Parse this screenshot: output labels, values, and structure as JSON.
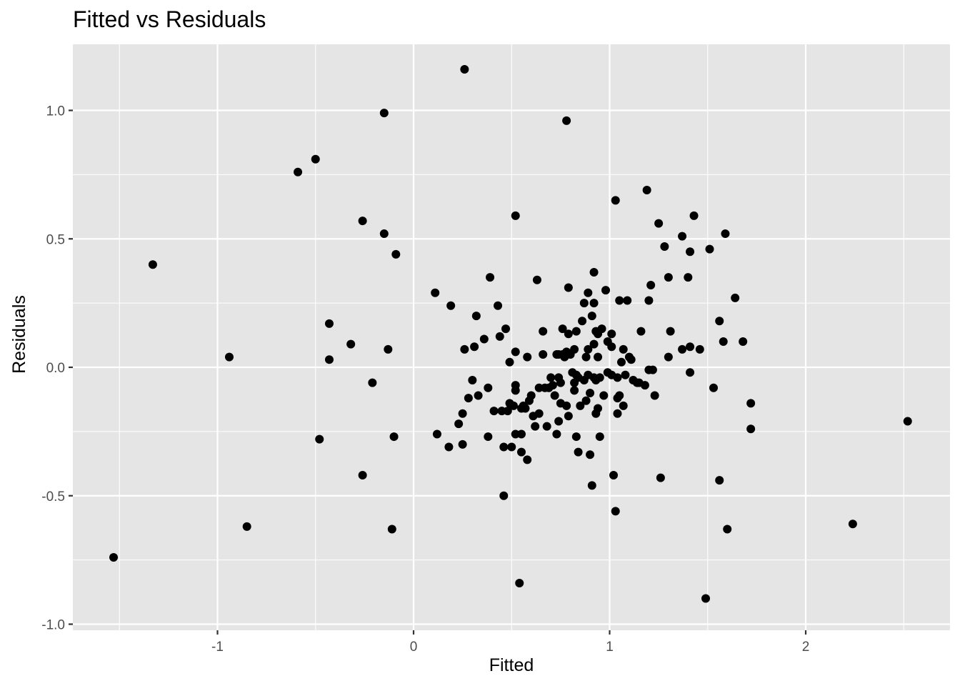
{
  "chart_data": {
    "type": "scatter",
    "title": "Fitted vs Residuals",
    "xlabel": "Fitted",
    "ylabel": "Residuals",
    "xlim": [
      -1.73,
      2.76
    ],
    "ylim": [
      -1.0,
      1.22
    ],
    "x_ticks": [
      {
        "value": -1,
        "label": "-1"
      },
      {
        "value": 0,
        "label": "0"
      },
      {
        "value": 1,
        "label": "1"
      },
      {
        "value": 2,
        "label": "2"
      }
    ],
    "y_ticks": [
      {
        "value": -1.0,
        "label": "-1.0"
      },
      {
        "value": -0.5,
        "label": "-0.5"
      },
      {
        "value": 0.0,
        "label": "0.0"
      },
      {
        "value": 0.5,
        "label": "0.5"
      },
      {
        "value": 1.0,
        "label": "1.0"
      }
    ],
    "grid": true,
    "panel_color": "#e5e5e5",
    "point_color": "#000000",
    "points": [
      [
        -1.53,
        -0.74
      ],
      [
        -1.33,
        0.4
      ],
      [
        -0.94,
        0.04
      ],
      [
        -0.85,
        -0.62
      ],
      [
        -0.59,
        0.76
      ],
      [
        -0.5,
        0.81
      ],
      [
        -0.48,
        -0.28
      ],
      [
        -0.43,
        0.03
      ],
      [
        -0.43,
        0.17
      ],
      [
        -0.32,
        0.09
      ],
      [
        -0.26,
        0.57
      ],
      [
        -0.26,
        -0.42
      ],
      [
        -0.21,
        -0.06
      ],
      [
        -0.15,
        0.99
      ],
      [
        -0.15,
        0.52
      ],
      [
        -0.13,
        0.07
      ],
      [
        -0.11,
        -0.63
      ],
      [
        -0.1,
        -0.27
      ],
      [
        -0.09,
        0.44
      ],
      [
        0.11,
        0.29
      ],
      [
        0.12,
        -0.26
      ],
      [
        0.18,
        -0.31
      ],
      [
        0.19,
        0.24
      ],
      [
        0.23,
        -0.22
      ],
      [
        0.25,
        -0.3
      ],
      [
        0.25,
        -0.18
      ],
      [
        0.26,
        1.16
      ],
      [
        0.26,
        0.07
      ],
      [
        0.28,
        -0.12
      ],
      [
        0.3,
        -0.05
      ],
      [
        0.31,
        0.08
      ],
      [
        0.32,
        0.2
      ],
      [
        0.33,
        -0.11
      ],
      [
        0.36,
        0.11
      ],
      [
        0.38,
        -0.27
      ],
      [
        0.38,
        -0.08
      ],
      [
        0.39,
        0.35
      ],
      [
        0.41,
        -0.17
      ],
      [
        0.43,
        0.24
      ],
      [
        0.44,
        0.12
      ],
      [
        0.45,
        -0.17
      ],
      [
        0.46,
        -0.5
      ],
      [
        0.46,
        -0.31
      ],
      [
        0.47,
        0.15
      ],
      [
        0.48,
        -0.17
      ],
      [
        0.49,
        -0.14
      ],
      [
        0.49,
        0.02
      ],
      [
        0.5,
        -0.31
      ],
      [
        0.51,
        -0.15
      ],
      [
        0.52,
        -0.26
      ],
      [
        0.52,
        -0.09
      ],
      [
        0.52,
        -0.07
      ],
      [
        0.52,
        0.06
      ],
      [
        0.52,
        0.59
      ],
      [
        0.54,
        -0.84
      ],
      [
        0.55,
        -0.16
      ],
      [
        0.55,
        -0.26
      ],
      [
        0.55,
        -0.33
      ],
      [
        0.56,
        -0.15
      ],
      [
        0.57,
        -0.16
      ],
      [
        0.58,
        0.04
      ],
      [
        0.58,
        -0.36
      ],
      [
        0.59,
        -0.13
      ],
      [
        0.6,
        -0.11
      ],
      [
        0.61,
        -0.19
      ],
      [
        0.62,
        -0.23
      ],
      [
        0.63,
        0.34
      ],
      [
        0.64,
        -0.08
      ],
      [
        0.64,
        -0.18
      ],
      [
        0.66,
        0.14
      ],
      [
        0.66,
        0.05
      ],
      [
        0.67,
        -0.08
      ],
      [
        0.68,
        -0.23
      ],
      [
        0.69,
        -0.08
      ],
      [
        0.7,
        -0.04
      ],
      [
        0.71,
        -0.07
      ],
      [
        0.72,
        -0.11
      ],
      [
        0.73,
        0.05
      ],
      [
        0.73,
        -0.26
      ],
      [
        0.74,
        -0.04
      ],
      [
        0.74,
        0.05
      ],
      [
        0.74,
        -0.21
      ],
      [
        0.75,
        -0.14
      ],
      [
        0.75,
        -0.06
      ],
      [
        0.76,
        0.15
      ],
      [
        0.76,
        0.05
      ],
      [
        0.77,
        0.04
      ],
      [
        0.78,
        0.06
      ],
      [
        0.78,
        -0.15
      ],
      [
        0.78,
        0.96
      ],
      [
        0.79,
        0.31
      ],
      [
        0.79,
        0.13
      ],
      [
        0.79,
        -0.19
      ],
      [
        0.8,
        0.05
      ],
      [
        0.81,
        -0.02
      ],
      [
        0.82,
        0.07
      ],
      [
        0.82,
        -0.09
      ],
      [
        0.82,
        -0.06
      ],
      [
        0.83,
        -0.03
      ],
      [
        0.83,
        0.14
      ],
      [
        0.83,
        -0.27
      ],
      [
        0.84,
        -0.33
      ],
      [
        0.84,
        -0.04
      ],
      [
        0.85,
        -0.15
      ],
      [
        0.86,
        0.18
      ],
      [
        0.87,
        0.25
      ],
      [
        0.87,
        -0.05
      ],
      [
        0.88,
        0.04
      ],
      [
        0.88,
        -0.13
      ],
      [
        0.89,
        0.07
      ],
      [
        0.89,
        -0.03
      ],
      [
        0.89,
        0.29
      ],
      [
        0.9,
        -0.1
      ],
      [
        0.9,
        -0.34
      ],
      [
        0.91,
        -0.46
      ],
      [
        0.91,
        0.2
      ],
      [
        0.92,
        -0.04
      ],
      [
        0.92,
        0.25
      ],
      [
        0.92,
        0.09
      ],
      [
        0.92,
        0.37
      ],
      [
        0.93,
        -0.18
      ],
      [
        0.93,
        -0.05
      ],
      [
        0.93,
        0.14
      ],
      [
        0.94,
        0.13
      ],
      [
        0.94,
        -0.16
      ],
      [
        0.94,
        0.04
      ],
      [
        0.95,
        -0.04
      ],
      [
        0.95,
        -0.27
      ],
      [
        0.96,
        0.15
      ],
      [
        0.97,
        -0.11
      ],
      [
        0.98,
        0.3
      ],
      [
        0.99,
        -0.02
      ],
      [
        0.99,
        0.1
      ],
      [
        1.01,
        -0.03
      ],
      [
        1.01,
        0.13
      ],
      [
        1.01,
        0.08
      ],
      [
        1.02,
        -0.42
      ],
      [
        1.03,
        -0.56
      ],
      [
        1.03,
        0.65
      ],
      [
        1.04,
        -0.04
      ],
      [
        1.04,
        -0.12
      ],
      [
        1.04,
        -0.18
      ],
      [
        1.05,
        0.26
      ],
      [
        1.05,
        -0.11
      ],
      [
        1.06,
        0.02
      ],
      [
        1.07,
        0.07
      ],
      [
        1.07,
        -0.15
      ],
      [
        1.08,
        -0.03
      ],
      [
        1.09,
        0.26
      ],
      [
        1.1,
        0.04
      ],
      [
        1.11,
        0.03
      ],
      [
        1.12,
        -0.05
      ],
      [
        1.14,
        -0.06
      ],
      [
        1.15,
        -0.06
      ],
      [
        1.16,
        0.14
      ],
      [
        1.18,
        -0.07
      ],
      [
        1.19,
        0.69
      ],
      [
        1.2,
        0.26
      ],
      [
        1.2,
        -0.01
      ],
      [
        1.21,
        0.32
      ],
      [
        1.22,
        -0.01
      ],
      [
        1.23,
        -0.11
      ],
      [
        1.25,
        0.56
      ],
      [
        1.26,
        -0.43
      ],
      [
        1.28,
        0.47
      ],
      [
        1.3,
        0.35
      ],
      [
        1.3,
        0.04
      ],
      [
        1.31,
        0.14
      ],
      [
        1.37,
        0.07
      ],
      [
        1.37,
        0.51
      ],
      [
        1.4,
        0.35
      ],
      [
        1.41,
        0.45
      ],
      [
        1.41,
        0.08
      ],
      [
        1.41,
        -0.02
      ],
      [
        1.43,
        0.59
      ],
      [
        1.46,
        0.07
      ],
      [
        1.49,
        -0.9
      ],
      [
        1.51,
        0.46
      ],
      [
        1.53,
        -0.08
      ],
      [
        1.56,
        0.18
      ],
      [
        1.56,
        -0.44
      ],
      [
        1.58,
        0.1
      ],
      [
        1.59,
        0.52
      ],
      [
        1.6,
        -0.63
      ],
      [
        1.64,
        0.27
      ],
      [
        1.68,
        0.1
      ],
      [
        1.72,
        -0.14
      ],
      [
        1.72,
        -0.24
      ],
      [
        2.24,
        -0.61
      ],
      [
        2.52,
        -0.21
      ]
    ]
  }
}
